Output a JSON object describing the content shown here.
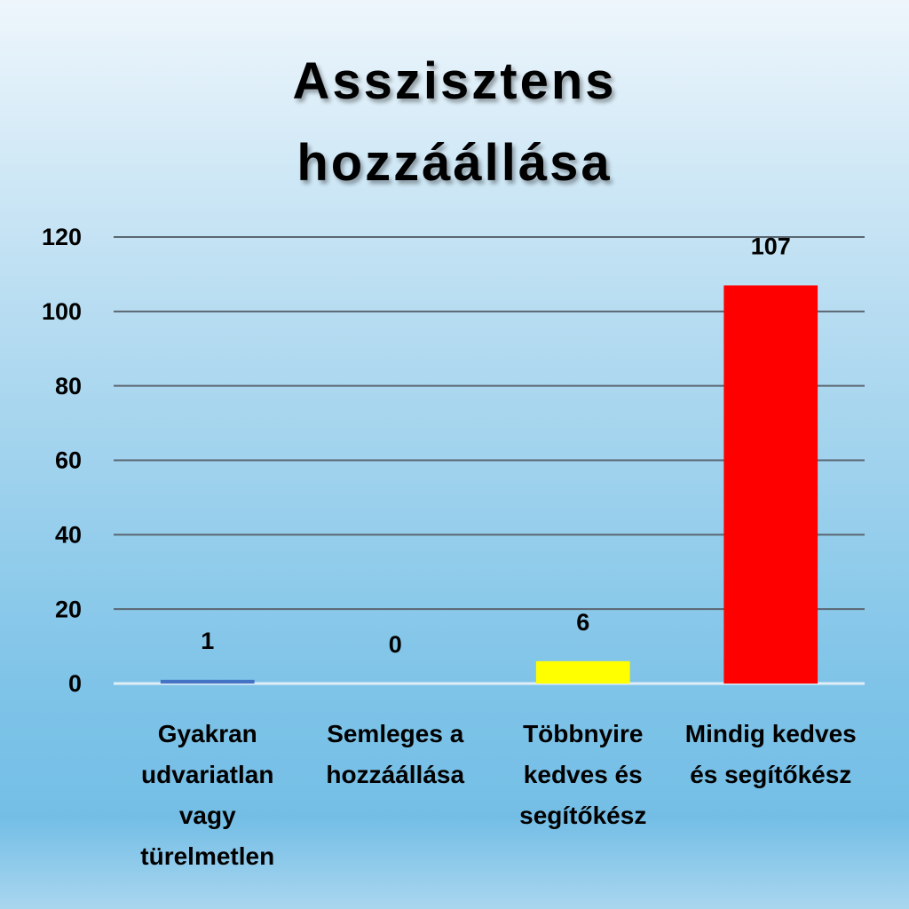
{
  "chart_data": {
    "type": "bar",
    "title": "Asszisztens hozzáállása",
    "categories": [
      "Gyakran udvariatlan vagy türelmetlen",
      "Semleges a hozzáállása",
      "Többnyire kedves és segítőkész",
      "Mindig kedves és segítőkész"
    ],
    "values": [
      1,
      0,
      6,
      107
    ],
    "colors": [
      "#4472c4",
      "#a5a5a5",
      "#ffff00",
      "#ff0000"
    ],
    "ylim": [
      0,
      120
    ],
    "yticks": [
      0,
      20,
      40,
      60,
      80,
      100,
      120
    ],
    "grid": true
  }
}
